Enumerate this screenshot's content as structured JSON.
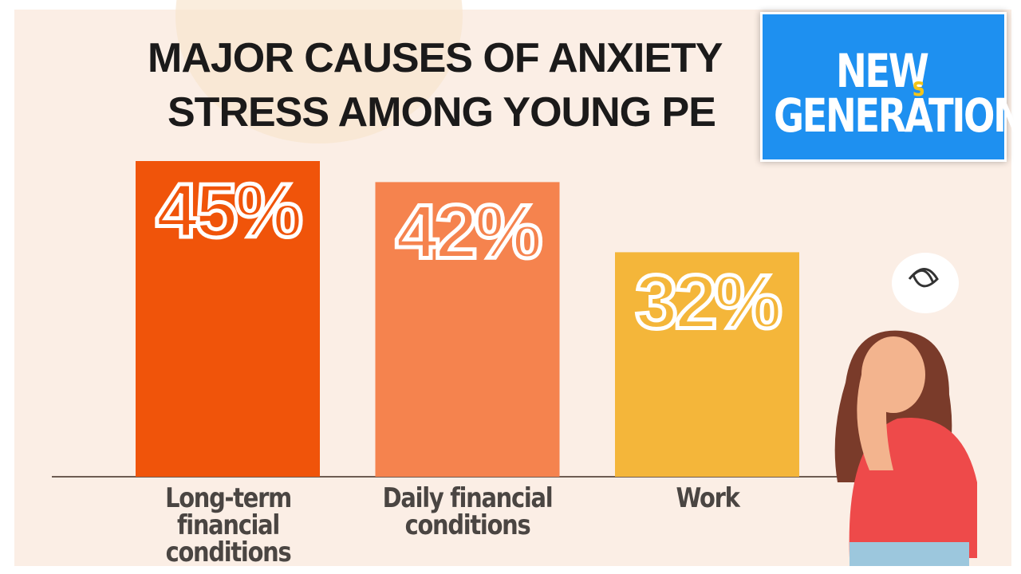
{
  "chart_data": {
    "type": "bar",
    "title_lines": [
      "MAJOR CAUSES OF ANXIETY",
      "STRESS AMONG YOUNG PE"
    ],
    "categories": [
      "Long-term financial conditions",
      "Daily financial conditions",
      "Work"
    ],
    "values": [
      45,
      42,
      32
    ],
    "value_labels": [
      "45%",
      "42%",
      "32%"
    ],
    "colors": [
      "#f0540a",
      "#f5834e",
      "#f4b63a"
    ]
  },
  "logo": {
    "line1": "NEW",
    "line1_small": "s",
    "line2": "GENERATION"
  }
}
